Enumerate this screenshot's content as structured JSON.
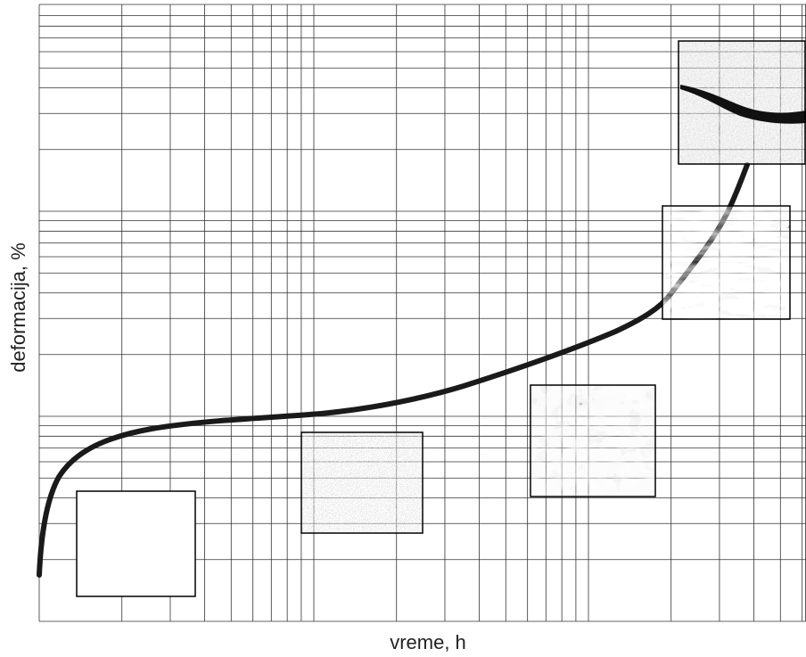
{
  "axes": {
    "y_label": "deformacija, %",
    "x_label": "vreme, h"
  }
}
